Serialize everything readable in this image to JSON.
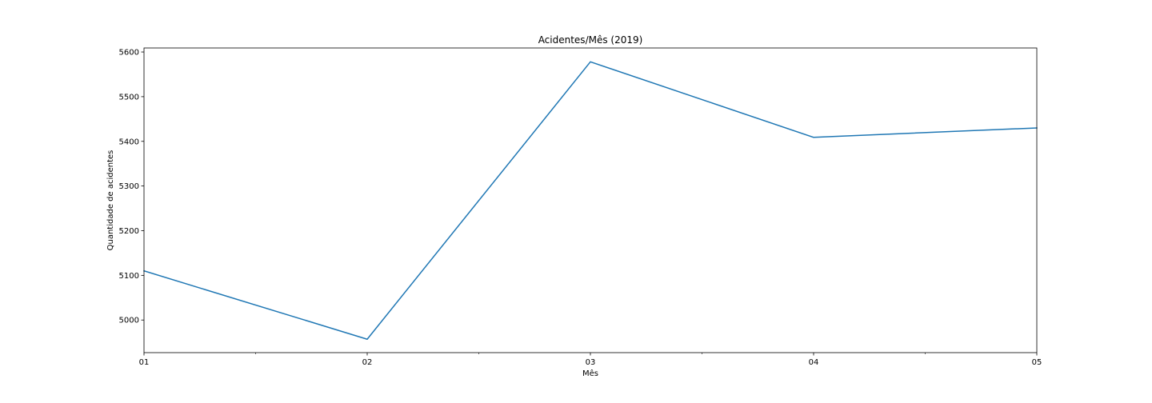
{
  "chart_data": {
    "type": "line",
    "title": "Acidentes/Mês (2019)",
    "xlabel": "Mês",
    "ylabel": "Quantidade de acidentes",
    "categories": [
      "01",
      "02",
      "03",
      "04",
      "05"
    ],
    "series": [
      {
        "values": [
          5110,
          4957,
          5578,
          5409,
          5430
        ],
        "color": "#1f77b4"
      }
    ],
    "ylim": [
      4927,
      5609
    ],
    "yticks": [
      5000,
      5100,
      5200,
      5300,
      5400,
      5500,
      5600
    ],
    "minor_xticks": true,
    "grid": false,
    "legend": "none"
  }
}
